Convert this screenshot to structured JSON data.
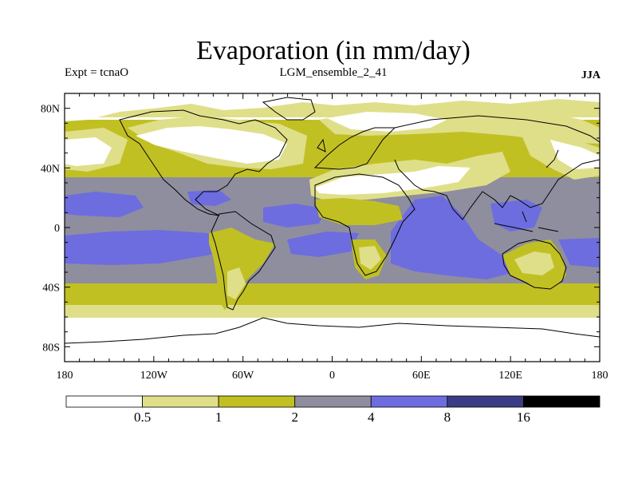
{
  "title": "Evaporation (in mm/day)",
  "experiment_label": "Expt = tcnaO",
  "run_name": "LGM_ensemble_2_41",
  "season": "JJA",
  "chart_data": {
    "type": "map_contour",
    "variable": "Evaporation",
    "units": "mm/day",
    "lon_range": [
      -180,
      180
    ],
    "lat_range": [
      -90,
      90
    ],
    "lon_ticks": [
      {
        "value": -180,
        "label": "180"
      },
      {
        "value": -120,
        "label": "120W"
      },
      {
        "value": -60,
        "label": "60W"
      },
      {
        "value": 0,
        "label": "0"
      },
      {
        "value": 60,
        "label": "60E"
      },
      {
        "value": 120,
        "label": "120E"
      },
      {
        "value": 180,
        "label": "180"
      }
    ],
    "lat_ticks": [
      {
        "value": 80,
        "label": "80N"
      },
      {
        "value": 40,
        "label": "40N"
      },
      {
        "value": 0,
        "label": "0"
      },
      {
        "value": -40,
        "label": "40S"
      },
      {
        "value": -80,
        "label": "80S"
      }
    ],
    "levels": [
      "0.5",
      "1",
      "2",
      "4",
      "8",
      "16"
    ],
    "colors": {
      "lt_0_5": "#ffffff",
      "0_5_1": "#dfdf89",
      "1_2": "#c1c023",
      "2_4": "#8e8e9f",
      "4_8": "#6d6ddf",
      "8_16": "#3c3c84",
      "gt_16": "#000000"
    }
  }
}
